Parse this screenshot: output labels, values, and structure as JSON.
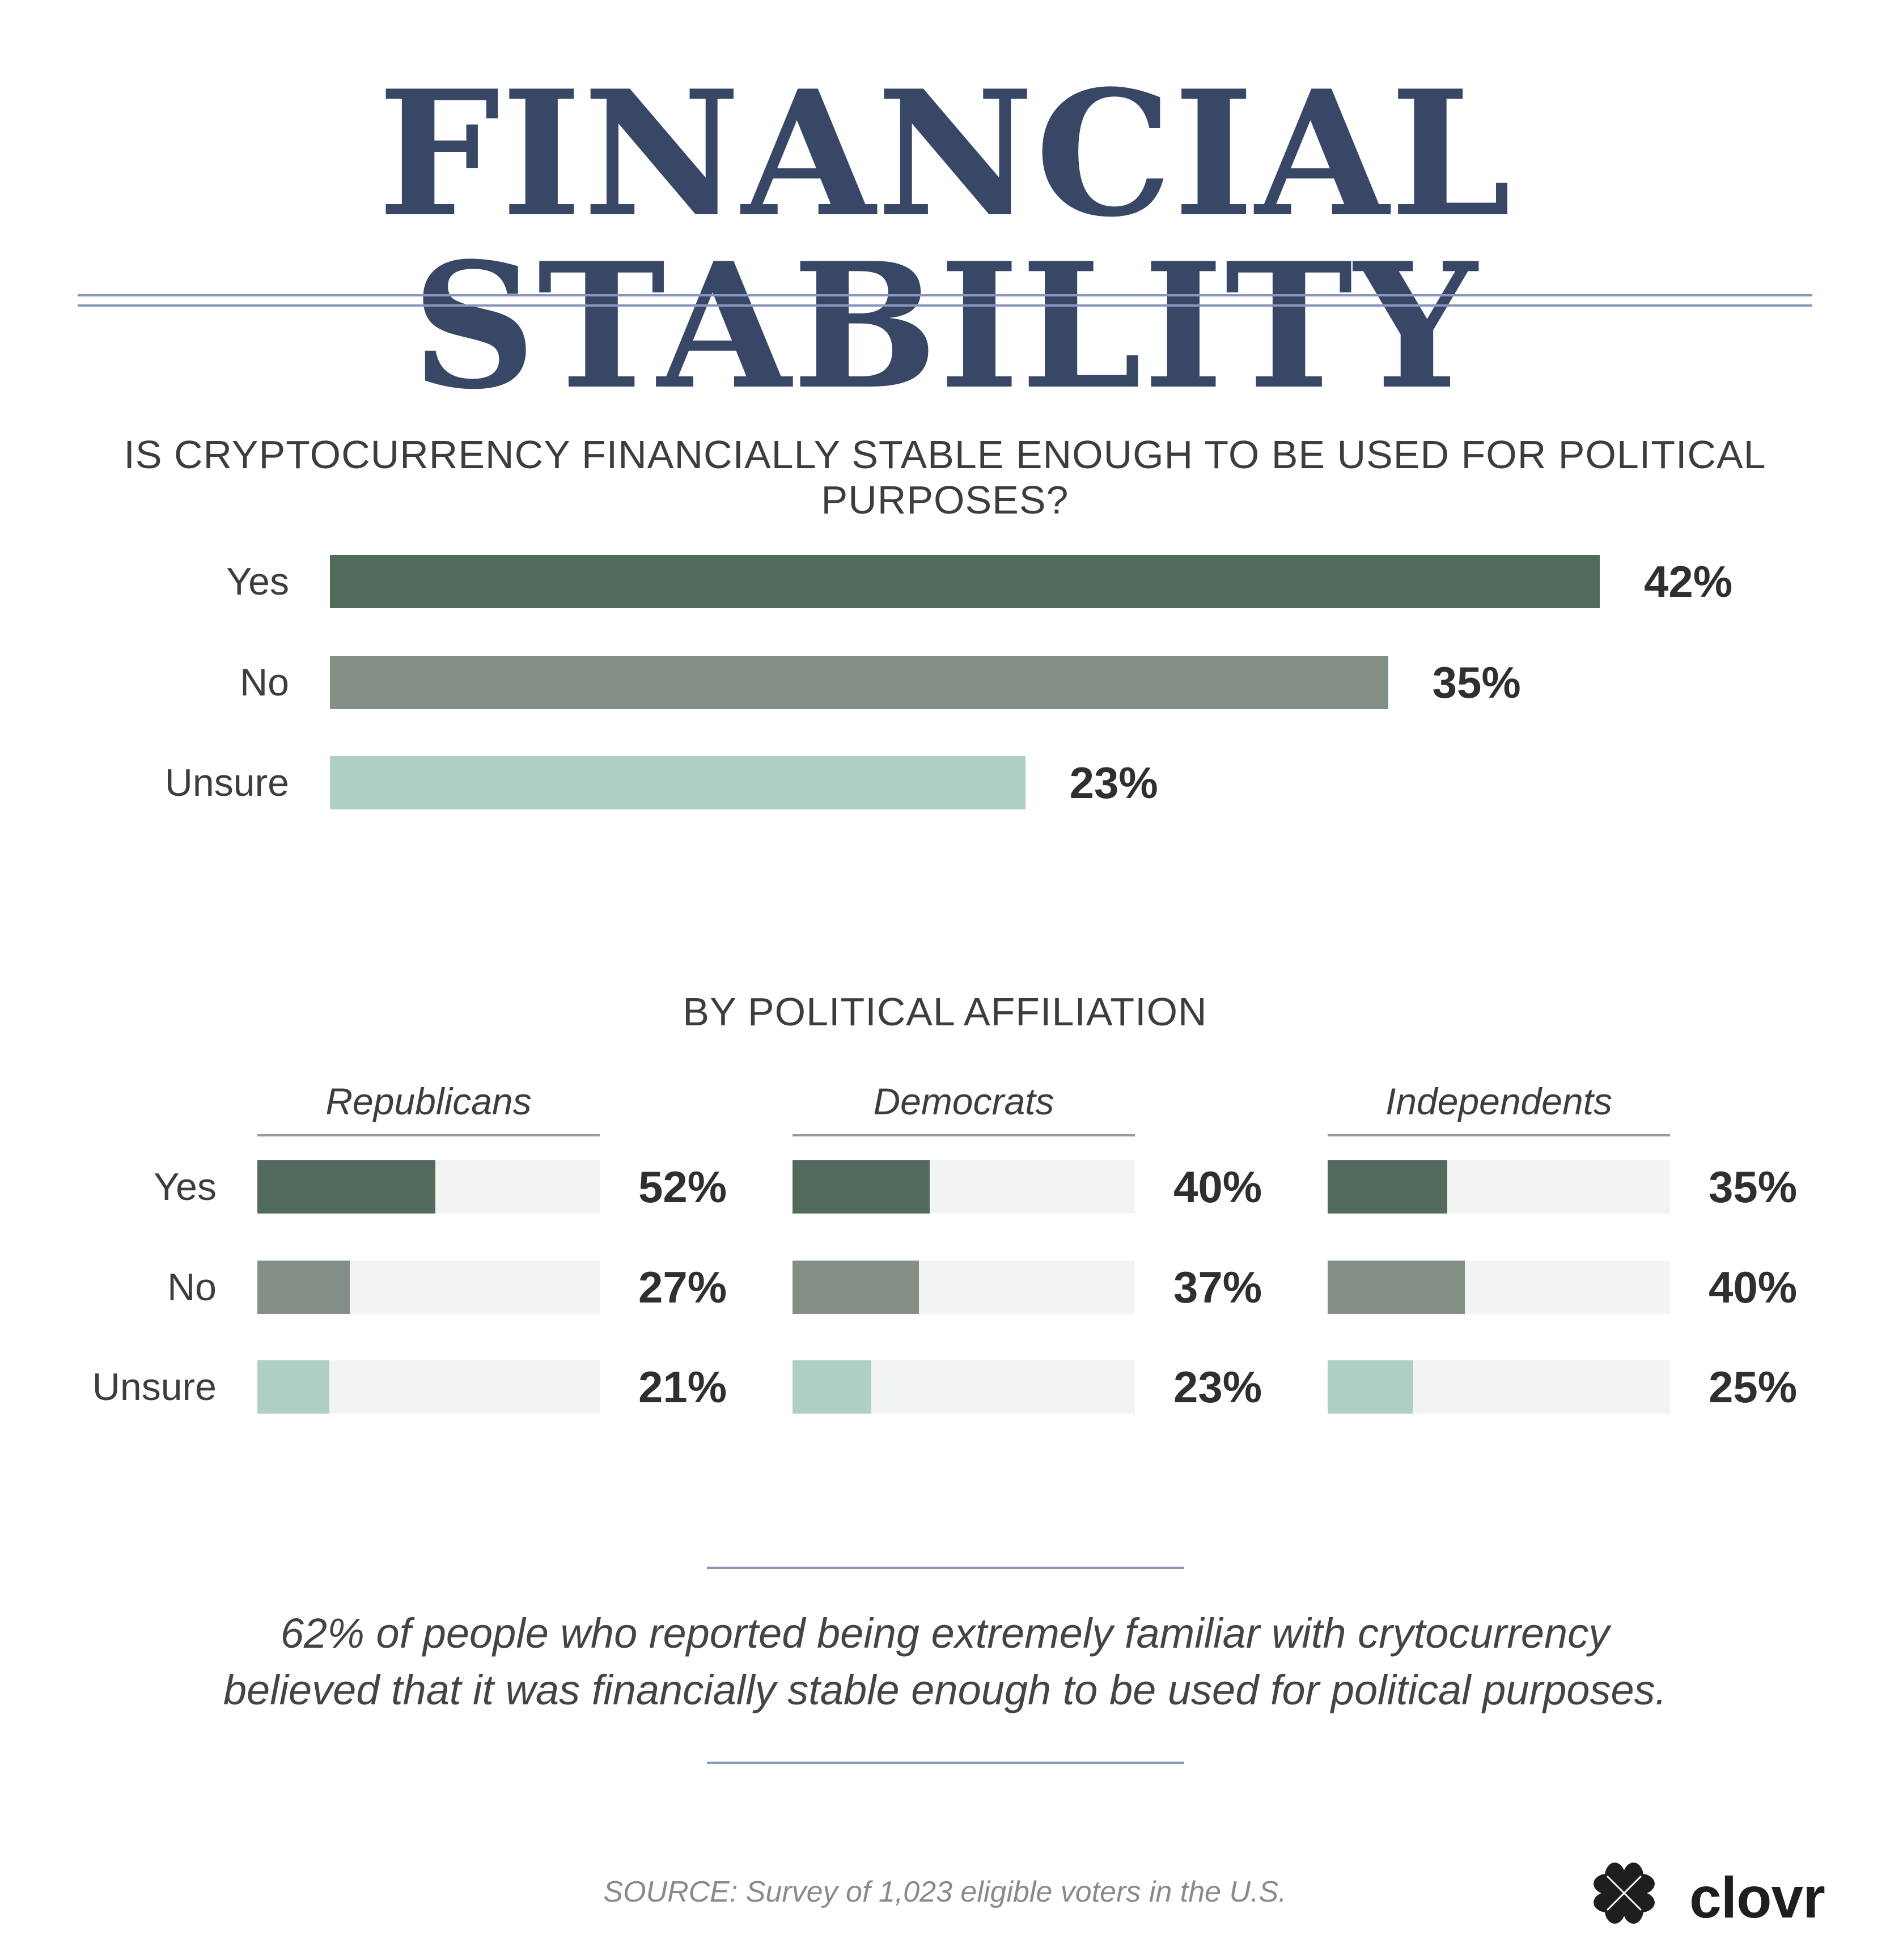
{
  "title": "FINANCIAL STABILITY",
  "question": "IS CRYPTOCURRENCY FINANCIALLY STABLE ENOUGH TO BE USED FOR POLITICAL PURPOSES?",
  "subtitle": "BY POLITICAL AFFILIATION",
  "note": {
    "line1": "62% of people who reported being extremely familiar with crytocurrency",
    "line2": "believed that it was financially stable enough to be used for political purposes."
  },
  "source": "SOURCE: Survey of 1,023 eligible voters in the U.S.",
  "brand": {
    "name": "clovr",
    "logo_icon": "clover-logo-icon"
  },
  "colors": {
    "title": "#394766",
    "rule": "#8a95bf",
    "yes": "#526b5d",
    "no": "#838f87",
    "unsure": "#aecfc1",
    "track": "#f2f4f3"
  },
  "chart_data": [
    {
      "type": "bar",
      "orientation": "horizontal",
      "title": "IS CRYPTOCURRENCY FINANCIALLY STABLE ENOUGH TO BE USED FOR POLITICAL PURPOSES?",
      "categories": [
        "Yes",
        "No",
        "Unsure"
      ],
      "values": [
        42,
        35,
        23
      ],
      "labels": [
        "42%",
        "35%",
        "23%"
      ],
      "unit": "%"
    },
    {
      "type": "bar",
      "orientation": "horizontal",
      "title": "BY POLITICAL AFFILIATION",
      "categories": [
        "Yes",
        "No",
        "Unsure"
      ],
      "xlim": [
        0,
        100
      ],
      "groups": [
        {
          "name": "Republicans",
          "values": [
            52,
            27,
            21
          ],
          "labels": [
            "52%",
            "27%",
            "21%"
          ]
        },
        {
          "name": "Democrats",
          "values": [
            40,
            37,
            23
          ],
          "labels": [
            "40%",
            "37%",
            "23%"
          ]
        },
        {
          "name": "Independents",
          "values": [
            35,
            40,
            25
          ],
          "labels": [
            "35%",
            "40%",
            "25%"
          ]
        }
      ]
    }
  ]
}
